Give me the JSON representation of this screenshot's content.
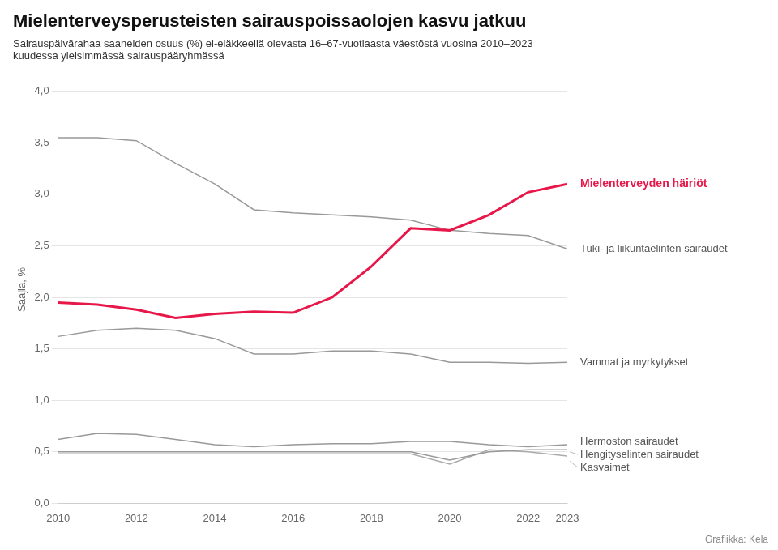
{
  "chart_data": {
    "type": "line",
    "title": "Mielenterveysperusteisten sairauspoissaolojen kasvu jatkuu",
    "subtitle": [
      "Sairauspäivärahaa saaneiden osuus (%) ei-eläkkeellä olevasta 16–67-vuotiaasta väestöstä vuosina 2010–2023",
      "kuudessa yleisimmässä sairauspääryhmässä"
    ],
    "ylabel": "Saajia, %",
    "footnote": "Grafiikka: Kela",
    "x": [
      2010,
      2011,
      2012,
      2013,
      2014,
      2015,
      2016,
      2017,
      2018,
      2019,
      2020,
      2021,
      2022,
      2023
    ],
    "series": [
      {
        "name": "Mielenterveyden häiriöt",
        "color": "#e8174a",
        "values": [
          1.95,
          1.93,
          1.88,
          1.8,
          1.84,
          1.86,
          1.85,
          2.0,
          2.3,
          2.67,
          2.65,
          2.8,
          3.02,
          3.1
        ]
      },
      {
        "name": "Tuki- ja liikuntaelinten sairaudet",
        "color": "#999999",
        "values": [
          3.55,
          3.55,
          3.52,
          3.3,
          3.1,
          2.85,
          2.82,
          2.8,
          2.78,
          2.75,
          2.65,
          2.62,
          2.6,
          2.47
        ]
      },
      {
        "name": "Vammat ja myrkytykset",
        "color": "#999999",
        "values": [
          1.62,
          1.68,
          1.7,
          1.68,
          1.6,
          1.45,
          1.45,
          1.48,
          1.48,
          1.45,
          1.37,
          1.37,
          1.36,
          1.37
        ]
      },
      {
        "name": "Hermoston sairaudet",
        "color": "#999999",
        "values": [
          0.62,
          0.68,
          0.67,
          0.62,
          0.57,
          0.55,
          0.57,
          0.58,
          0.58,
          0.6,
          0.6,
          0.57,
          0.55,
          0.57
        ]
      },
      {
        "name": "Hengityselinten sairaudet",
        "color": "#999999",
        "values": [
          0.5,
          0.5,
          0.5,
          0.5,
          0.5,
          0.5,
          0.5,
          0.5,
          0.5,
          0.5,
          0.42,
          0.5,
          0.52,
          0.52
        ]
      },
      {
        "name": "Kasvaimet",
        "color": "#aaaaaa",
        "values": [
          0.48,
          0.48,
          0.48,
          0.48,
          0.48,
          0.48,
          0.48,
          0.48,
          0.48,
          0.48,
          0.38,
          0.52,
          0.5,
          0.46
        ]
      }
    ],
    "annotations": [
      {
        "text": "Mielenterveyden häiriöt",
        "x": 2023,
        "y": 3.1,
        "color": "#e8174a"
      },
      {
        "text": "Tuki- ja liikuntaelinten sairaudet",
        "x": 2023,
        "y": 2.47,
        "color": "#555555"
      },
      {
        "text": "Vammat ja myrkytykset",
        "x": 2023,
        "y": 1.37,
        "color": "#555555"
      },
      {
        "text": "Hermoston sairaudet",
        "x": 2023,
        "y": 0.6,
        "color": "#555555"
      },
      {
        "text": "Hengityselinten sairaudet",
        "x": 2023,
        "y": 0.5,
        "color": "#555555"
      },
      {
        "text": "Kasvaimet",
        "x": 2023,
        "y": 0.41,
        "color": "#555555"
      }
    ],
    "xlim": [
      2010,
      2023
    ],
    "xticks": [
      2010,
      2012,
      2014,
      2016,
      2018,
      2020,
      2022,
      2023
    ],
    "ylim": [
      0.0,
      4.15
    ],
    "yticks": [
      {
        "value": 0.0,
        "label": "0,0"
      },
      {
        "value": 0.5,
        "label": "0,5"
      },
      {
        "value": 1.0,
        "label": "1,0"
      },
      {
        "value": 1.5,
        "label": "1,5"
      },
      {
        "value": 2.0,
        "label": "2,0"
      },
      {
        "value": 2.5,
        "label": "2,5"
      },
      {
        "value": 3.0,
        "label": "3,0"
      },
      {
        "value": 3.5,
        "label": "3,5"
      },
      {
        "value": 4.0,
        "label": "4,0"
      }
    ],
    "grid": "y"
  }
}
